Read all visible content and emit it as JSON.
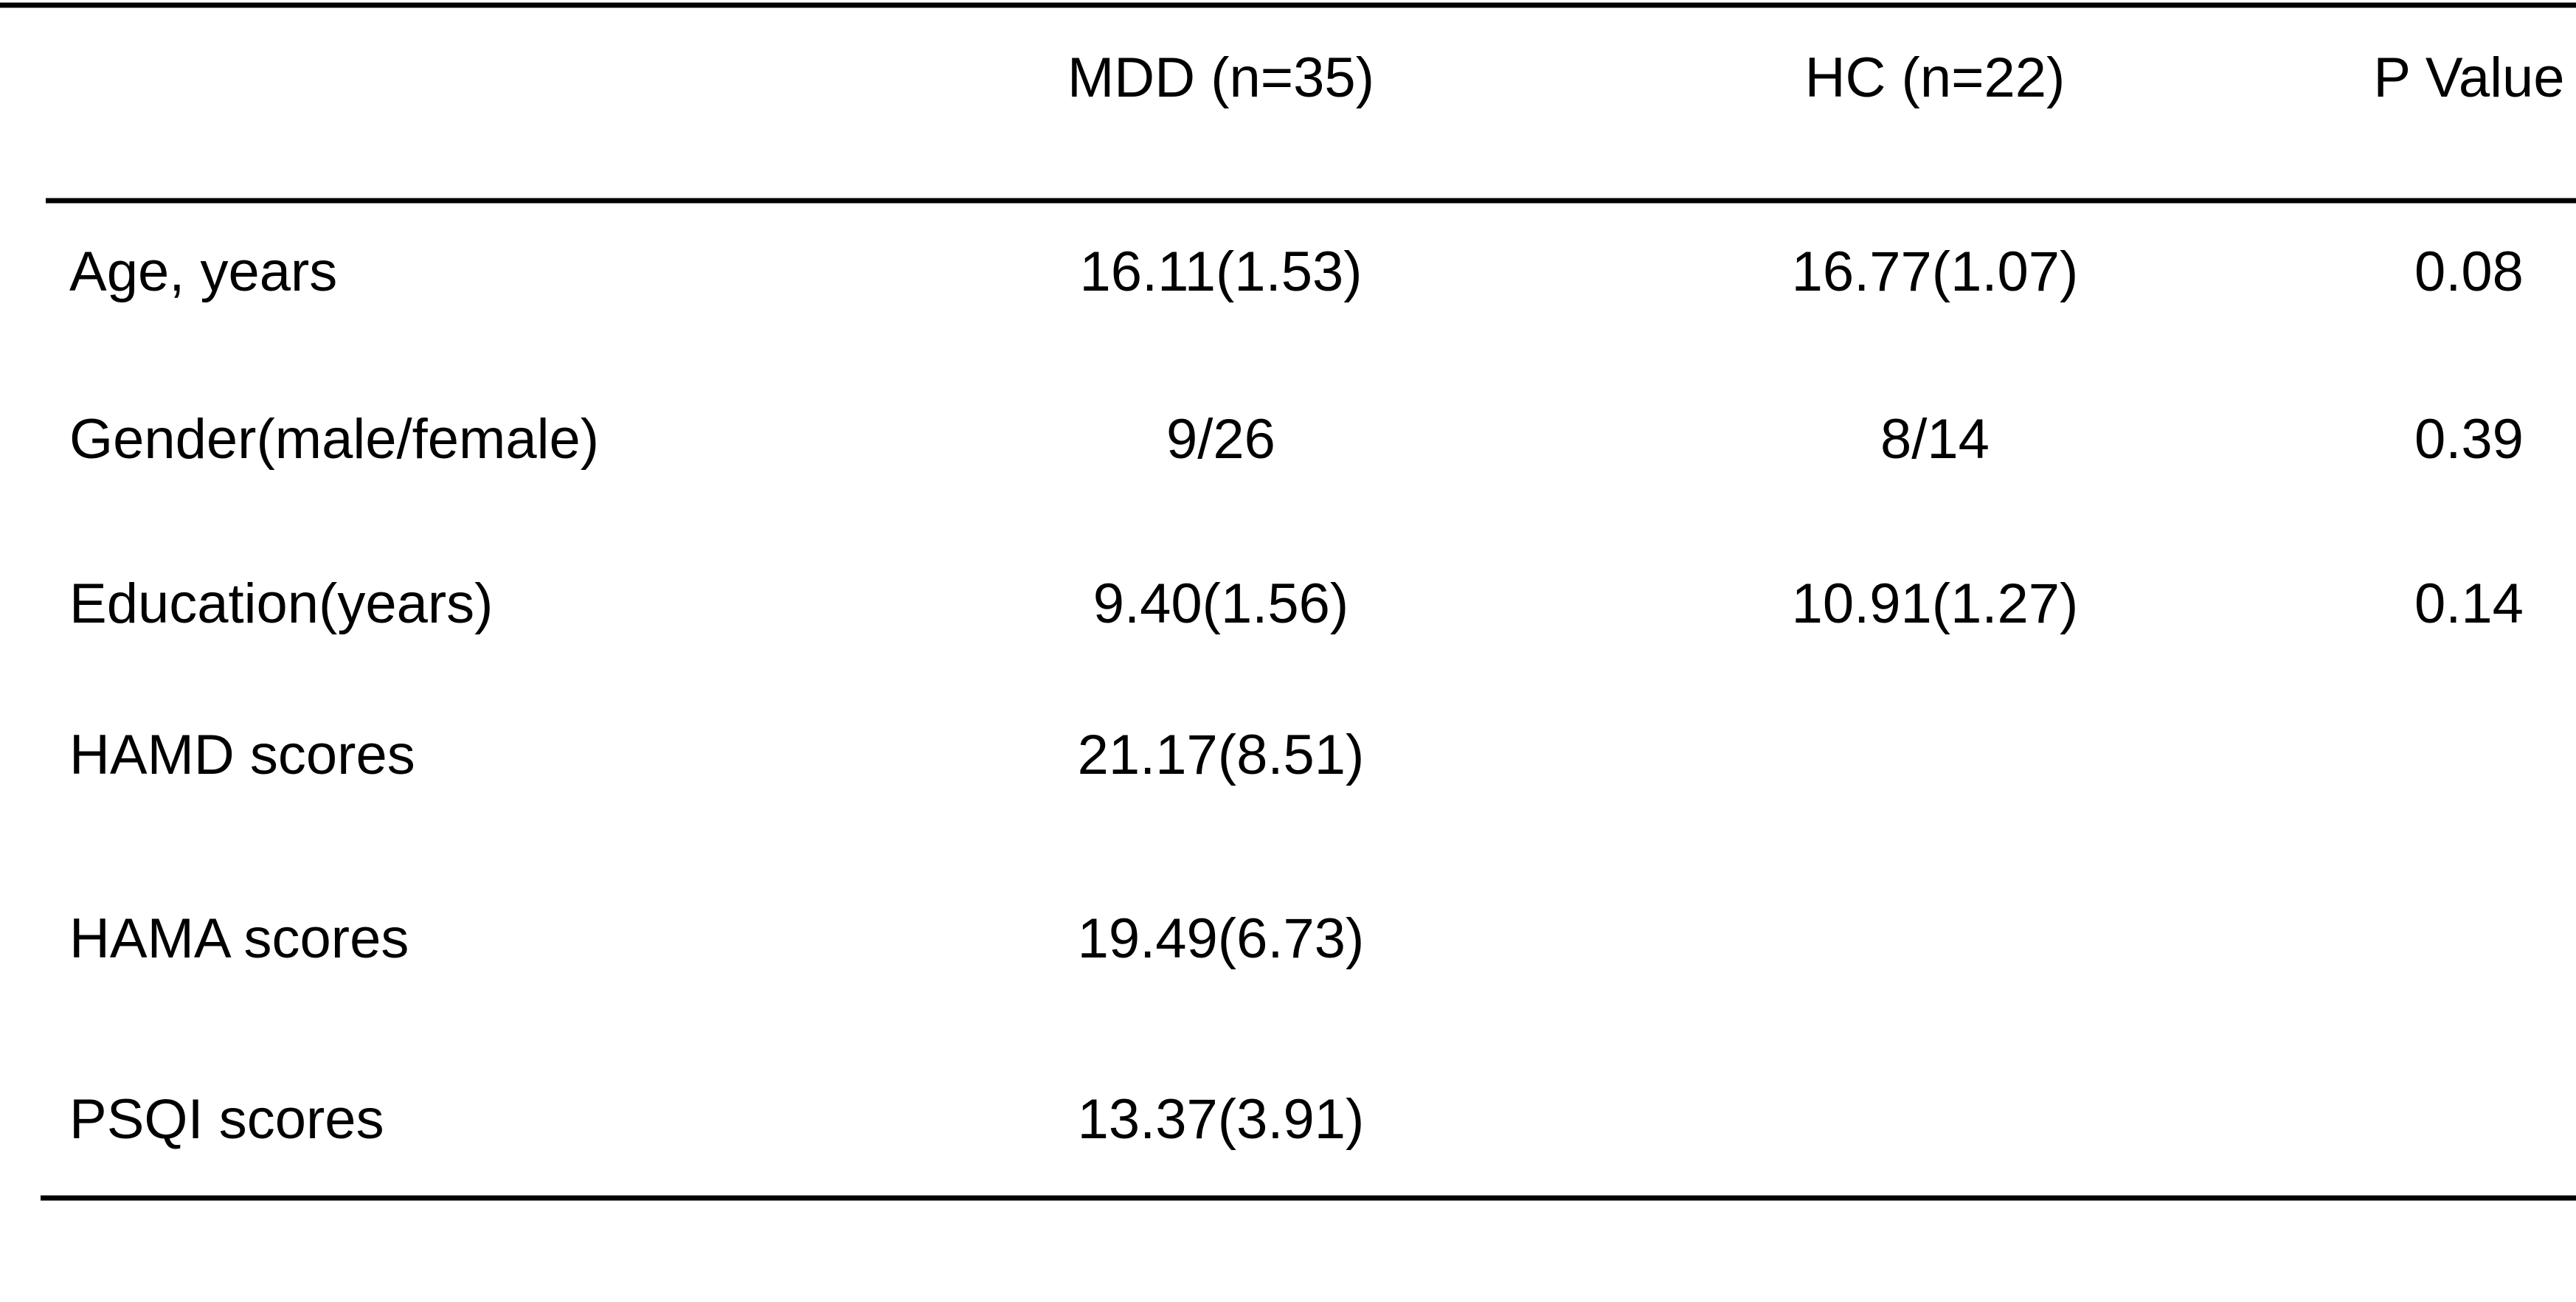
{
  "table": {
    "header": [
      "MDD (n=35)",
      "HC (n=22)",
      "P Value"
    ],
    "rows": [
      [
        "Age, years",
        "16.11(1.53)",
        "16.77(1.07)",
        "0.08"
      ],
      [
        "Gender(male/female)",
        "9/26",
        "8/14",
        "0.39"
      ],
      [
        "Education(years)",
        "9.40(1.56)",
        "10.91(1.27)",
        "0.14"
      ],
      [
        "HAMD scores",
        "21.17(8.51)"
      ],
      [
        "HAMA scores",
        "19.49(6.73)"
      ],
      [
        "PSQI scores",
        "13.37(3.91)"
      ]
    ]
  }
}
